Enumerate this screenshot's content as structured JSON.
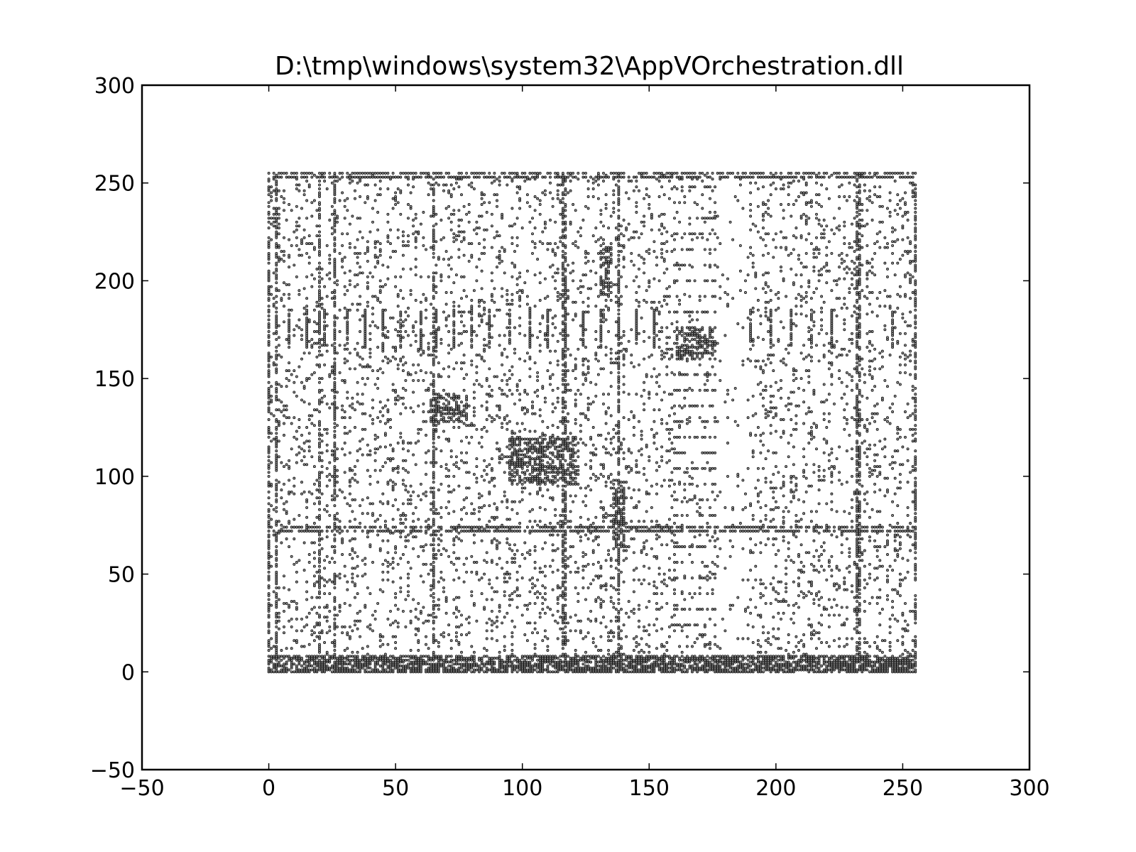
{
  "chart_data": {
    "type": "scatter",
    "title": "D:\\tmp\\windows\\system32\\AppVOrchestration.dll",
    "xlabel": "",
    "ylabel": "",
    "xlim": [
      -50,
      300
    ],
    "ylim": [
      -50,
      300
    ],
    "x_ticks": [
      -50,
      0,
      50,
      100,
      150,
      200,
      250,
      300
    ],
    "y_ticks": [
      -50,
      0,
      50,
      100,
      150,
      200,
      250,
      300
    ],
    "x_tick_labels": [
      "−50",
      "0",
      "50",
      "100",
      "150",
      "200",
      "250",
      "300"
    ],
    "y_tick_labels": [
      "−50",
      "0",
      "50",
      "100",
      "150",
      "200",
      "250",
      "300"
    ],
    "grid": false,
    "legend": "none",
    "marker_color": "#000000",
    "data_extent": {
      "x": [
        0,
        255
      ],
      "y": [
        0,
        255
      ]
    },
    "dense_rows_y": [
      0,
      1,
      2,
      3,
      4,
      5,
      6,
      7,
      8,
      72,
      74,
      253,
      255
    ],
    "dense_columns_x": [
      0,
      3,
      20,
      26,
      65,
      116,
      117,
      138,
      232,
      233,
      255
    ],
    "dense_blocks": [
      {
        "x": [
          95,
          121
        ],
        "y": [
          96,
          120
        ]
      },
      {
        "x": [
          161,
          176
        ],
        "y": [
          160,
          176
        ]
      },
      {
        "x": [
          64,
          78
        ],
        "y": [
          128,
          142
        ]
      },
      {
        "x": [
          136,
          140
        ],
        "y": [
          62,
          98
        ]
      },
      {
        "x": [
          131,
          135
        ],
        "y": [
          190,
          218
        ]
      }
    ],
    "ladder_columns_x": [
      160,
      176
    ],
    "ladder_y_range": [
      20,
      255
    ],
    "tick_rows_y": [
      166,
      185
    ],
    "tick_columns_x": [
      8,
      15,
      22,
      31,
      38,
      45,
      52,
      60,
      66,
      73,
      80,
      87,
      95,
      103,
      110,
      117,
      124,
      131,
      138,
      145,
      152,
      190,
      198,
      206,
      214,
      222,
      246
    ]
  }
}
